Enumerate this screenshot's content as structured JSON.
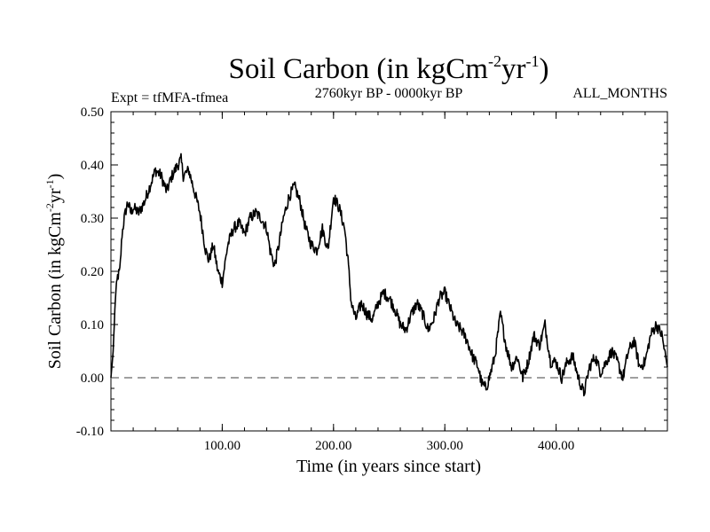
{
  "chart_data": {
    "type": "line",
    "title": {
      "text": "Soil Carbon (in kgCm",
      "sup1": "-2",
      "mid": "yr",
      "sup2": "-1",
      "end": ")"
    },
    "subtitle_left": "Expt = tfMFA-tfmea",
    "subtitle_center": "2760kyr BP - 0000kyr BP",
    "subtitle_right": "ALL_MONTHS",
    "xlabel": "Time (in years since start)",
    "ylabel": {
      "text": "Soil Carbon (in kgCm",
      "sup1": "-2",
      "mid": "yr",
      "sup2": "-1",
      "end": ")"
    },
    "xlim": [
      0,
      500
    ],
    "ylim": [
      -0.1,
      0.5
    ],
    "xticks": [
      100,
      200,
      300,
      400
    ],
    "xtick_labels": [
      "100.00",
      "200.00",
      "300.00",
      "400.00"
    ],
    "yticks": [
      -0.1,
      0.0,
      0.1,
      0.2,
      0.3,
      0.4,
      0.5
    ],
    "ytick_labels": [
      "-0.10",
      "0.00",
      "0.10",
      "0.20",
      "0.30",
      "0.40",
      "0.50"
    ],
    "reference_line": {
      "y": 0.0,
      "style": "dashed"
    },
    "series": [
      {
        "name": "Soil Carbon",
        "x": [
          0,
          2,
          4,
          6,
          8,
          10,
          12,
          15,
          18,
          20,
          25,
          30,
          35,
          40,
          45,
          50,
          55,
          60,
          63,
          65,
          70,
          75,
          80,
          85,
          88,
          92,
          96,
          100,
          105,
          110,
          115,
          120,
          125,
          130,
          135,
          140,
          143,
          147,
          150,
          155,
          160,
          165,
          170,
          175,
          180,
          185,
          190,
          195,
          200,
          205,
          210,
          213,
          216,
          220,
          225,
          230,
          235,
          240,
          245,
          250,
          255,
          260,
          265,
          270,
          275,
          280,
          285,
          290,
          295,
          300,
          305,
          310,
          315,
          320,
          325,
          330,
          333,
          337,
          340,
          345,
          350,
          355,
          360,
          365,
          370,
          375,
          380,
          385,
          390,
          395,
          400,
          405,
          410,
          415,
          420,
          425,
          430,
          435,
          440,
          445,
          450,
          455,
          460,
          465,
          470,
          475,
          480,
          485,
          490,
          495,
          500
        ],
        "y": [
          0.0,
          0.05,
          0.15,
          0.19,
          0.2,
          0.27,
          0.3,
          0.33,
          0.31,
          0.32,
          0.31,
          0.33,
          0.36,
          0.39,
          0.38,
          0.35,
          0.38,
          0.4,
          0.41,
          0.38,
          0.39,
          0.35,
          0.31,
          0.24,
          0.22,
          0.25,
          0.2,
          0.18,
          0.25,
          0.28,
          0.29,
          0.27,
          0.3,
          0.31,
          0.3,
          0.28,
          0.24,
          0.21,
          0.24,
          0.3,
          0.34,
          0.36,
          0.33,
          0.28,
          0.25,
          0.24,
          0.28,
          0.24,
          0.34,
          0.32,
          0.28,
          0.22,
          0.14,
          0.11,
          0.14,
          0.12,
          0.11,
          0.14,
          0.16,
          0.15,
          0.13,
          0.1,
          0.09,
          0.12,
          0.14,
          0.12,
          0.09,
          0.11,
          0.15,
          0.16,
          0.13,
          0.1,
          0.09,
          0.07,
          0.04,
          0.02,
          -0.01,
          -0.02,
          0.0,
          0.04,
          0.12,
          0.06,
          0.02,
          0.04,
          0.0,
          0.03,
          0.08,
          0.06,
          0.1,
          0.03,
          0.03,
          0.0,
          0.03,
          0.04,
          0.0,
          -0.03,
          0.02,
          0.04,
          0.01,
          0.03,
          0.05,
          0.03,
          0.0,
          0.05,
          0.07,
          0.02,
          0.03,
          0.08,
          0.1,
          0.08,
          0.02
        ]
      }
    ]
  }
}
